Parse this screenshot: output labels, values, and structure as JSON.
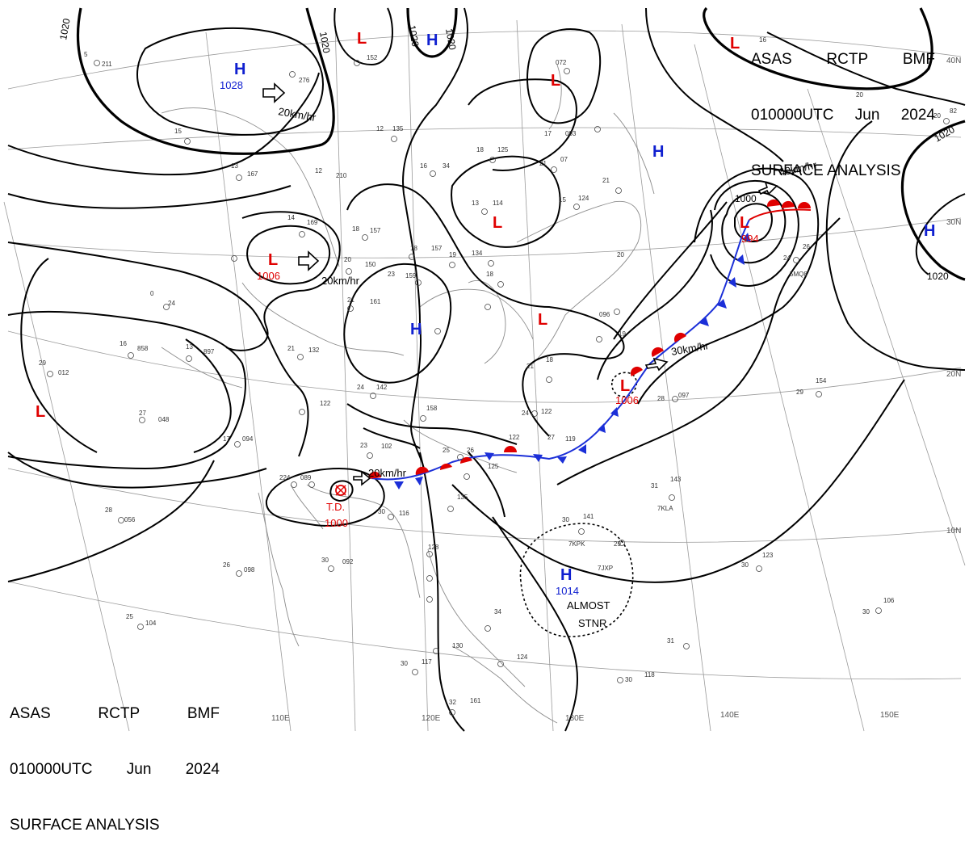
{
  "header": {
    "agency": "ASAS",
    "center": "RCTP",
    "bureau": "BMF",
    "time": "010000UTC",
    "month": "Jun",
    "year": "2024",
    "product": "SURFACE ANALYSIS"
  },
  "legend_symbol": "L",
  "systems": [
    {
      "type": "H",
      "value": "1028"
    },
    {
      "type": "H",
      "value": ""
    },
    {
      "type": "H",
      "value": ""
    },
    {
      "type": "H",
      "value": ""
    },
    {
      "type": "H",
      "value": ""
    },
    {
      "type": "H",
      "value": "1014"
    },
    {
      "type": "L",
      "value": ""
    },
    {
      "type": "L",
      "value": ""
    },
    {
      "type": "L",
      "value": ""
    },
    {
      "type": "L",
      "value": "1006"
    },
    {
      "type": "L",
      "value": ""
    },
    {
      "type": "L",
      "value": ""
    },
    {
      "type": "L",
      "value": "994"
    },
    {
      "type": "L",
      "value": "1006"
    },
    {
      "type": "TD",
      "value": "1000"
    }
  ],
  "movements": [
    "20km/hr",
    "20km/hr",
    "20km/hr",
    "30km/hr",
    "40km/hr"
  ],
  "isobar_labels": [
    "1020",
    "1020",
    "1020",
    "1020",
    "1020",
    "1020",
    "1000"
  ],
  "notes": [
    "ALMOST",
    "STNR"
  ],
  "td_label": "T.D.",
  "longitudes": [
    "110E",
    "120E",
    "130E",
    "140E",
    "150E"
  ],
  "latitudes": [
    "40N",
    "30N",
    "20N",
    "10N"
  ],
  "stations": [
    {
      "id": "5KLA",
      "label": "7KLA"
    },
    {
      "id": "5KPK",
      "label": "7KPK"
    },
    {
      "id": "5JXP",
      "label": "7JXP"
    },
    {
      "id": "5MQ8",
      "label": "5MQ8"
    }
  ],
  "colors": {
    "high": "#1020d0",
    "low": "#e00000",
    "cold_front": "#1b2fd8",
    "warm_front": "#e00000",
    "isobar": "#000000"
  }
}
